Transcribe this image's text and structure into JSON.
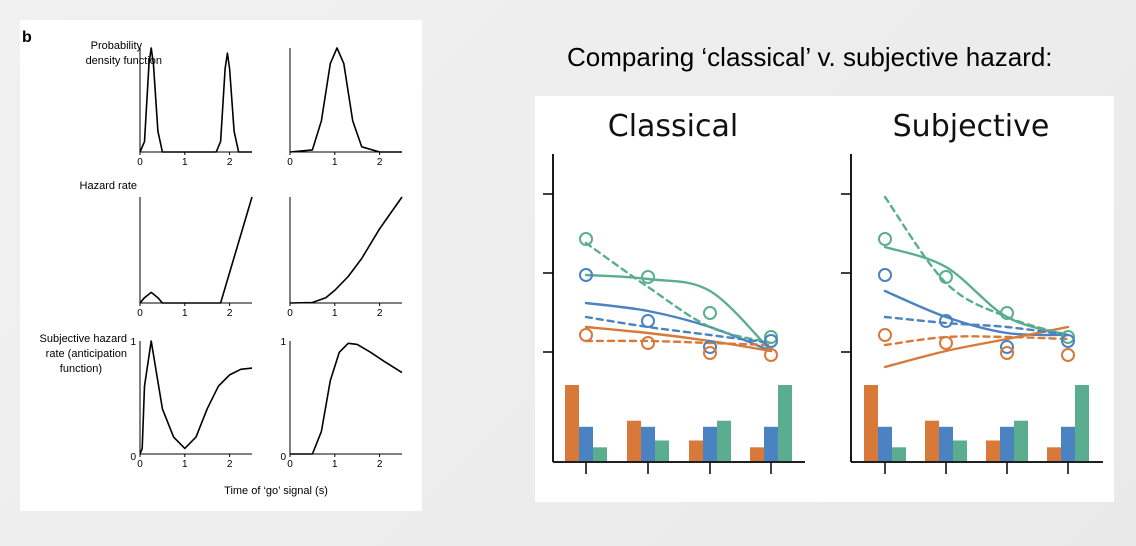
{
  "slide": {
    "title": "Comparing ‘classical’ v. subjective hazard:"
  },
  "left_figure": {
    "panel_letter": "b",
    "row_labels": {
      "pdf_line1": "Probability",
      "pdf_line2": "density function",
      "hazard": "Hazard rate",
      "subjective_line1": "Subjective hazard",
      "subjective_line2": "rate (anticipation",
      "subjective_line3": "function)"
    },
    "x_axis_label": "Time of ‘go’ signal (s)",
    "x_tick_labels": [
      "0",
      "1",
      "2"
    ],
    "y_tick_labels": {
      "zero": "0",
      "one": "1"
    }
  },
  "right_figure": {
    "titles": {
      "classical": "Classical",
      "subjective": "Subjective"
    }
  },
  "chart_data": [
    {
      "type": "line",
      "description_source": "left panel, left column (bimodal)",
      "xlim": [
        0,
        2.5
      ],
      "x_ticks": [
        0,
        1,
        2
      ],
      "rows": [
        {
          "row": "pdf",
          "x": [
            0,
            0.1,
            0.2,
            0.25,
            0.3,
            0.4,
            0.5,
            1.7,
            1.8,
            1.9,
            1.95,
            2.0,
            2.1,
            2.2,
            2.5
          ],
          "y": [
            0,
            0.1,
            0.85,
            1.0,
            0.85,
            0.2,
            0,
            0,
            0.1,
            0.8,
            0.95,
            0.8,
            0.2,
            0,
            0
          ]
        },
        {
          "row": "hazard",
          "x": [
            0,
            0.1,
            0.25,
            0.4,
            0.5,
            1.7,
            1.8,
            2.5
          ],
          "y": [
            0,
            0.05,
            0.1,
            0.05,
            0,
            0,
            0.0,
            1.0
          ]
        },
        {
          "row": "subjective",
          "x": [
            0,
            0.05,
            0.1,
            0.25,
            0.5,
            0.75,
            1.0,
            1.25,
            1.5,
            1.75,
            2.0,
            2.25,
            2.5
          ],
          "y": [
            0,
            0.05,
            0.6,
            1.0,
            0.4,
            0.15,
            0.05,
            0.15,
            0.4,
            0.6,
            0.7,
            0.75,
            0.76
          ],
          "ylim": [
            0,
            1
          ]
        }
      ]
    },
    {
      "type": "line",
      "description_source": "left panel, right column (unimodal)",
      "xlim": [
        0,
        2.5
      ],
      "x_ticks": [
        0,
        1,
        2
      ],
      "rows": [
        {
          "row": "pdf",
          "x": [
            0,
            0.5,
            0.7,
            0.9,
            1.05,
            1.2,
            1.4,
            1.6,
            2.0,
            2.5
          ],
          "y": [
            0,
            0.02,
            0.3,
            0.85,
            1.0,
            0.85,
            0.3,
            0.05,
            0,
            0
          ]
        },
        {
          "row": "hazard",
          "x": [
            0,
            0.5,
            0.8,
            1.0,
            1.3,
            1.6,
            2.0,
            2.5
          ],
          "y": [
            0,
            0.005,
            0.05,
            0.12,
            0.25,
            0.42,
            0.7,
            1.0
          ]
        },
        {
          "row": "subjective",
          "x": [
            0,
            0.5,
            0.7,
            0.9,
            1.1,
            1.3,
            1.5,
            1.8,
            2.1,
            2.5
          ],
          "y": [
            0,
            0,
            0.2,
            0.65,
            0.9,
            0.98,
            0.97,
            0.9,
            0.82,
            0.72
          ],
          "ylim": [
            0,
            1
          ]
        }
      ]
    },
    {
      "type": "line",
      "title": "Classical",
      "x": [
        1,
        2,
        3,
        4
      ],
      "colors": {
        "orange": "#d8793a",
        "blue": "#4a82c2",
        "green": "#5aae8f"
      },
      "series": [
        {
          "color": "green",
          "style": "solid",
          "values": [
            0.76,
            0.74,
            0.68,
            0.38
          ]
        },
        {
          "color": "blue",
          "style": "solid",
          "values": [
            0.62,
            0.58,
            0.5,
            0.38
          ]
        },
        {
          "color": "orange",
          "style": "solid",
          "values": [
            0.5,
            0.47,
            0.43,
            0.38
          ]
        },
        {
          "color": "green",
          "style": "dashed",
          "values": [
            0.92,
            0.7,
            0.5,
            0.42
          ]
        },
        {
          "color": "blue",
          "style": "dashed",
          "values": [
            0.55,
            0.5,
            0.46,
            0.42
          ]
        },
        {
          "color": "orange",
          "style": "dashed",
          "values": [
            0.43,
            0.43,
            0.42,
            0.41
          ]
        }
      ],
      "markers": [
        {
          "color": "green",
          "values": [
            0.94,
            0.75,
            0.57,
            0.45
          ]
        },
        {
          "color": "blue",
          "values": [
            0.76,
            0.53,
            0.4,
            0.43
          ]
        },
        {
          "color": "orange",
          "values": [
            0.46,
            0.42,
            0.37,
            0.36
          ]
        }
      ],
      "bars": [
        {
          "category": 1,
          "orange": 1.0,
          "blue": 0.45,
          "green": 0.18
        },
        {
          "category": 2,
          "orange": 0.53,
          "blue": 0.45,
          "green": 0.27
        },
        {
          "category": 3,
          "orange": 0.27,
          "blue": 0.45,
          "green": 0.53
        },
        {
          "category": 4,
          "orange": 0.18,
          "blue": 0.45,
          "green": 1.0
        }
      ]
    },
    {
      "type": "line",
      "title": "Subjective",
      "x": [
        1,
        2,
        3,
        4
      ],
      "colors": {
        "orange": "#d8793a",
        "blue": "#4a82c2",
        "green": "#5aae8f"
      },
      "series": [
        {
          "color": "green",
          "style": "solid",
          "values": [
            0.9,
            0.8,
            0.55,
            0.46
          ]
        },
        {
          "color": "blue",
          "style": "solid",
          "values": [
            0.68,
            0.55,
            0.47,
            0.46
          ]
        },
        {
          "color": "orange",
          "style": "solid",
          "values": [
            0.3,
            0.38,
            0.44,
            0.5
          ]
        },
        {
          "color": "green",
          "style": "dashed",
          "values": [
            1.15,
            0.72,
            0.55,
            0.46
          ]
        },
        {
          "color": "blue",
          "style": "dashed",
          "values": [
            0.55,
            0.52,
            0.5,
            0.46
          ]
        },
        {
          "color": "orange",
          "style": "dashed",
          "values": [
            0.41,
            0.45,
            0.45,
            0.44
          ]
        }
      ],
      "markers": [
        {
          "color": "green",
          "values": [
            0.94,
            0.75,
            0.57,
            0.45
          ]
        },
        {
          "color": "blue",
          "values": [
            0.76,
            0.53,
            0.4,
            0.43
          ]
        },
        {
          "color": "orange",
          "values": [
            0.46,
            0.42,
            0.37,
            0.36
          ]
        }
      ],
      "bars": [
        {
          "category": 1,
          "orange": 1.0,
          "blue": 0.45,
          "green": 0.18
        },
        {
          "category": 2,
          "orange": 0.53,
          "blue": 0.45,
          "green": 0.27
        },
        {
          "category": 3,
          "orange": 0.27,
          "blue": 0.45,
          "green": 0.53
        },
        {
          "category": 4,
          "orange": 0.18,
          "blue": 0.45,
          "green": 1.0
        }
      ]
    }
  ]
}
